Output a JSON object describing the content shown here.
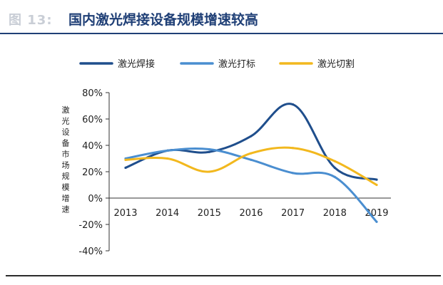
{
  "header": {
    "figure_label": "图 13:",
    "title": "国内激光焊接设备规模增速较高"
  },
  "chart_data": {
    "type": "line",
    "title": "国内激光焊接设备规模增速较高",
    "xlabel": "",
    "ylabel": "激光设备市场规模增速",
    "categories": [
      "2013",
      "2014",
      "2015",
      "2016",
      "2017",
      "2018",
      "2019"
    ],
    "yticks": [
      "80%",
      "60%",
      "40%",
      "20%",
      "0%",
      "-20%",
      "-40%"
    ],
    "ylim": [
      -40,
      80
    ],
    "grid": false,
    "legend_position": "top",
    "series": [
      {
        "name": "激光焊接",
        "color": "#1f4e8c",
        "values": [
          23,
          36,
          35,
          47,
          71,
          23,
          14
        ]
      },
      {
        "name": "激光打标",
        "color": "#4a8ed0",
        "values": [
          30,
          36,
          37,
          29,
          19,
          16,
          -18
        ]
      },
      {
        "name": "激光切割",
        "color": "#f2b81e",
        "values": [
          29,
          30,
          20,
          34,
          38,
          28,
          10
        ]
      }
    ]
  }
}
